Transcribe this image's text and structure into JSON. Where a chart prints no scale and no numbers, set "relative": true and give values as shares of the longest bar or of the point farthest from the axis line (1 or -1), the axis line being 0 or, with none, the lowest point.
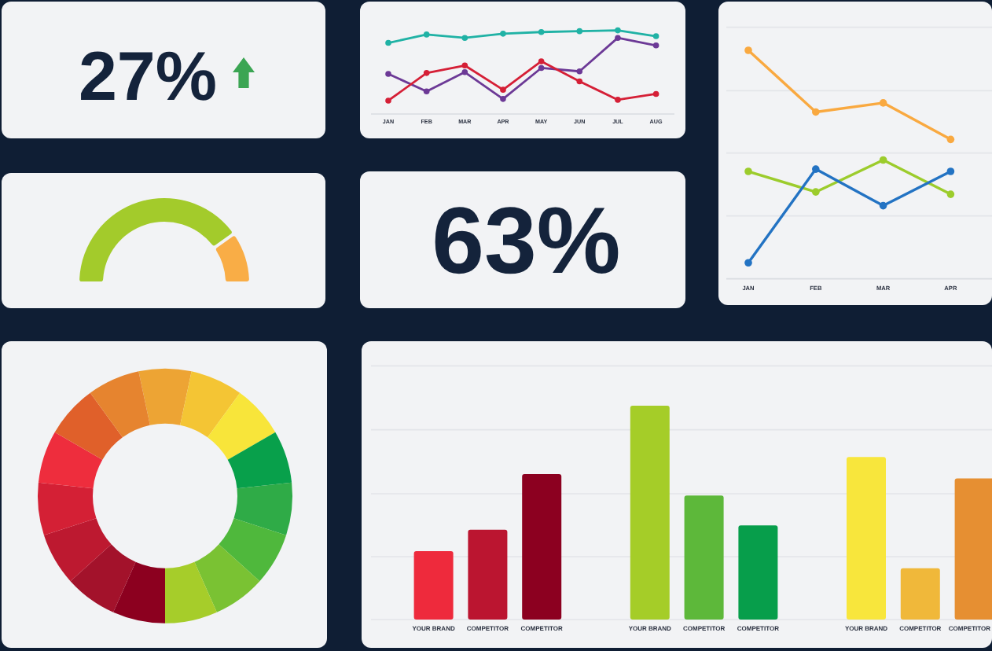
{
  "chart_data": [
    {
      "type": "other",
      "title": "27%"
    },
    {
      "type": "line",
      "categories": [
        "JAN",
        "FEB",
        "MAR",
        "APR",
        "MAY",
        "JUN",
        "JUL",
        "AUG"
      ],
      "relative": true,
      "marker": "circle",
      "series": [
        {
          "color": "#20b2a5",
          "values": [
            0.85,
            0.95,
            0.91,
            0.96,
            0.98,
            0.99,
            1,
            0.93
          ]
        },
        {
          "color": "#6c3996",
          "values": [
            0.48,
            0.27,
            0.5,
            0.18,
            0.55,
            0.51,
            0.91,
            0.82
          ]
        },
        {
          "color": "#d51f36",
          "values": [
            0.16,
            0.49,
            0.58,
            0.29,
            0.63,
            0.39,
            0.17,
            0.24
          ]
        }
      ]
    },
    {
      "type": "line",
      "categories": [
        "JAN",
        "FEB",
        "MAR",
        "APR"
      ],
      "relative": true,
      "grid": true,
      "marker": "circle",
      "series": [
        {
          "color": "#f9a940",
          "values": [
            1,
            0.73,
            0.77,
            0.61
          ]
        },
        {
          "color": "#9ccc2c",
          "values": [
            0.47,
            0.38,
            0.52,
            0.37
          ]
        },
        {
          "color": "#2373c3",
          "values": [
            0.07,
            0.48,
            0.32,
            0.47
          ]
        }
      ]
    },
    {
      "type": "donut",
      "categories": [
        null,
        null
      ],
      "values": [
        81,
        19
      ],
      "colors": [
        "#a3cb2b",
        "#f9ad46"
      ]
    },
    {
      "type": "other",
      "title": "63%"
    },
    {
      "type": "donut",
      "categories": [
        null,
        null,
        null,
        null,
        null,
        null,
        null,
        null,
        null,
        null,
        null,
        null,
        null,
        null,
        null
      ],
      "values": [
        6.67,
        6.67,
        6.67,
        6.67,
        6.67,
        6.67,
        6.67,
        6.67,
        6.67,
        6.67,
        6.67,
        6.67,
        6.67,
        6.67,
        6.67
      ],
      "colors": [
        "#eda434",
        "#f4c534",
        "#f8e53a",
        "#08a04b",
        "#2fab47",
        "#4fb83c",
        "#7ac233",
        "#a6cd2a",
        "#8c001f",
        "#a3122b",
        "#bd1930",
        "#d42035",
        "#ee2d3d",
        "#e0602a",
        "#e6842f"
      ]
    },
    {
      "type": "bar",
      "categories": [
        "YOUR BRAND",
        "COMPETITOR",
        "COMPETITOR",
        null,
        "YOUR BRAND",
        "COMPETITOR",
        "COMPETITOR",
        null,
        "YOUR BRAND",
        "COMPETITOR",
        "COMPETITOR"
      ],
      "relative": true,
      "grid": true,
      "values": [
        0.32,
        0.42,
        0.68,
        null,
        1,
        0.58,
        0.44,
        null,
        0.76,
        0.24,
        0.66
      ],
      "colors": [
        "#ee2a3c",
        "#bb1530",
        "#8c0020",
        null,
        "#a5cd28",
        "#5db83a",
        "#079e4b",
        null,
        "#f8e63c",
        "#f0b83a",
        "#e68f32"
      ]
    }
  ]
}
